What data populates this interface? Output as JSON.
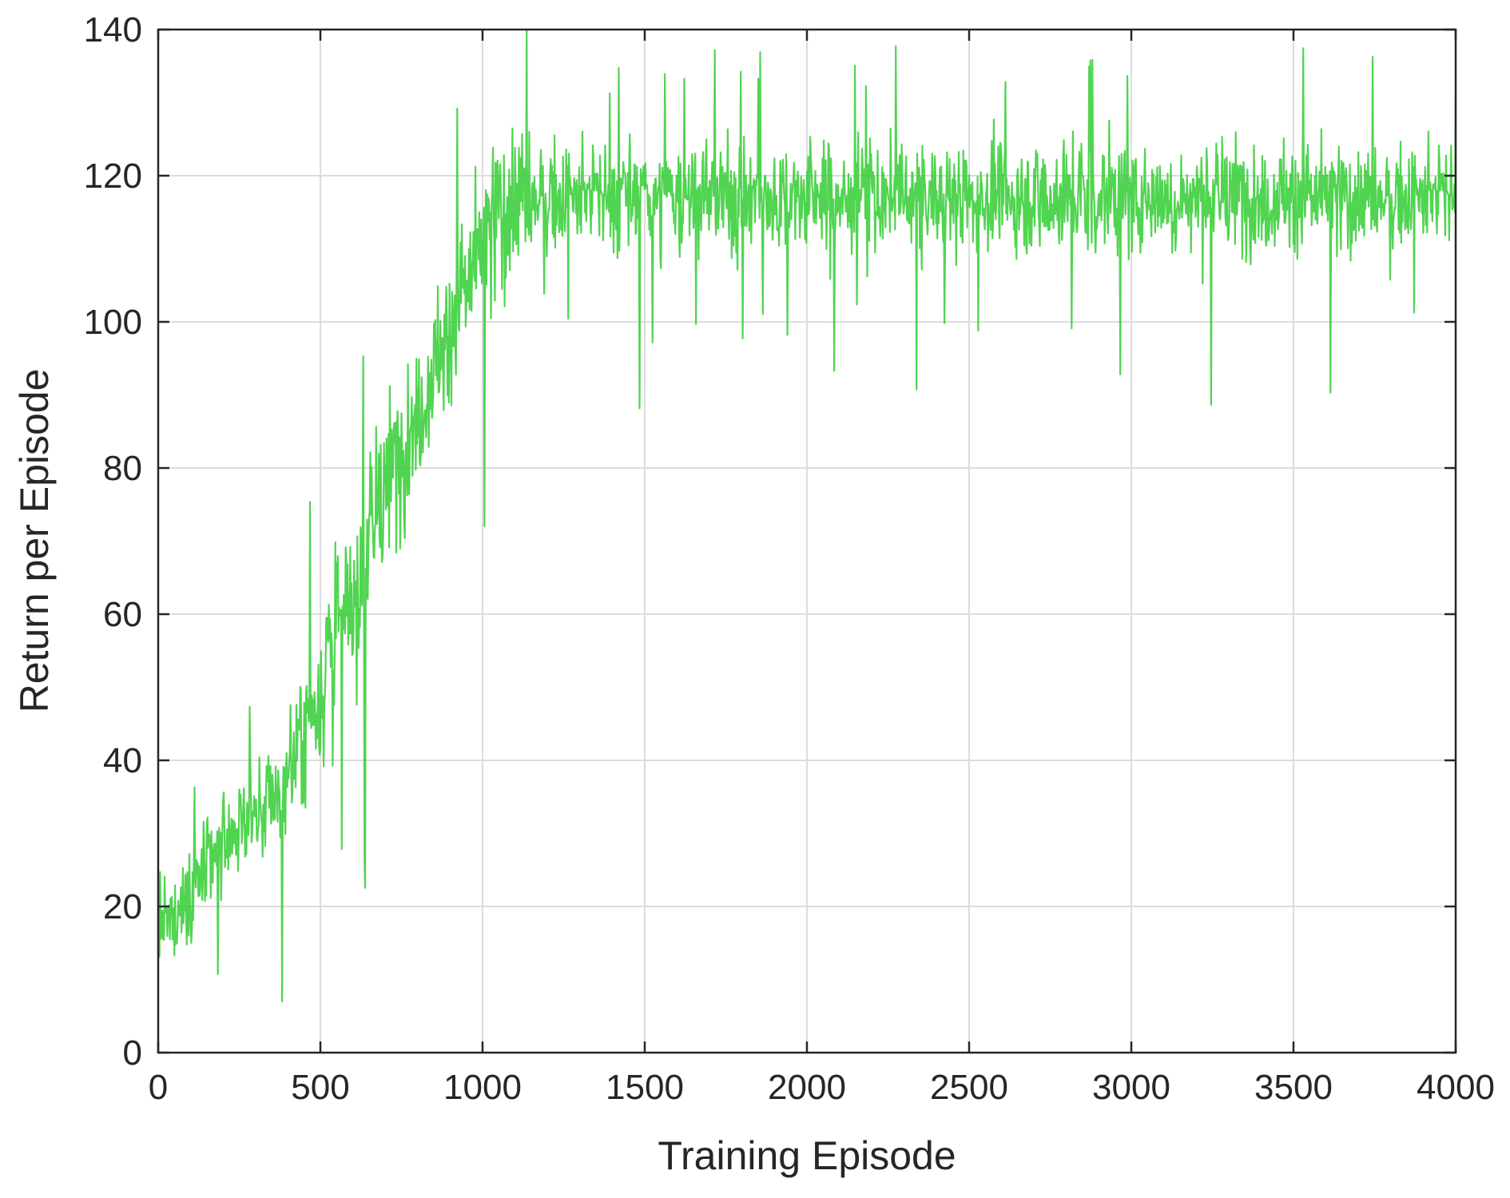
{
  "chart_data": {
    "type": "line",
    "xlabel": "Training Episode",
    "ylabel": "Return per Episode",
    "xlim": [
      0,
      4000
    ],
    "ylim": [
      0,
      140
    ],
    "xticks": [
      0,
      500,
      1000,
      1500,
      2000,
      2500,
      3000,
      3500,
      4000
    ],
    "yticks": [
      0,
      20,
      40,
      60,
      80,
      100,
      120,
      140
    ],
    "xtick_labels": [
      "0",
      "500",
      "1000",
      "1500",
      "2000",
      "2500",
      "3000",
      "3500",
      "4000"
    ],
    "ytick_labels": [
      "0",
      "20",
      "40",
      "60",
      "80",
      "100",
      "120",
      "140"
    ],
    "grid": true,
    "series": [
      {
        "color": "#33cc33",
        "x": [
          0,
          50,
          100,
          150,
          200,
          250,
          300,
          350,
          400,
          450,
          500,
          550,
          600,
          650,
          700,
          750,
          800,
          850,
          900,
          950,
          1000,
          1050,
          1100,
          1150,
          1200,
          1300,
          1400,
          1500,
          1600,
          1700,
          1800,
          1900,
          2000,
          2100,
          2200,
          2300,
          2400,
          2500,
          2600,
          2700,
          2800,
          2900,
          3000,
          3100,
          3200,
          3300,
          3400,
          3500,
          3600,
          3700,
          3800,
          3900,
          4000
        ],
        "y": [
          17,
          18,
          22,
          25,
          28,
          31,
          33,
          34,
          38,
          44,
          50,
          57,
          62,
          70,
          77,
          82,
          88,
          93,
          99,
          105,
          110,
          115,
          117,
          117,
          117,
          117,
          117,
          117,
          117,
          117,
          117,
          117,
          117,
          117,
          117,
          117,
          117,
          117,
          117,
          117,
          117,
          117,
          117,
          117,
          117,
          117,
          117,
          117,
          117,
          117,
          117,
          117,
          117
        ],
        "noise": [
          5,
          5,
          6,
          6,
          6,
          6,
          6,
          7,
          8,
          9,
          11,
          12,
          12,
          11,
          10,
          10,
          9,
          9,
          9,
          10,
          10,
          11,
          11,
          9,
          8,
          7,
          7,
          7,
          7,
          7,
          7,
          7,
          7,
          7,
          7,
          7,
          7,
          7,
          7,
          7,
          7,
          7,
          7,
          7,
          7,
          7,
          7,
          7,
          7,
          7,
          7,
          7,
          7
        ],
        "max_y": 140,
        "min_y": 7
      }
    ]
  }
}
